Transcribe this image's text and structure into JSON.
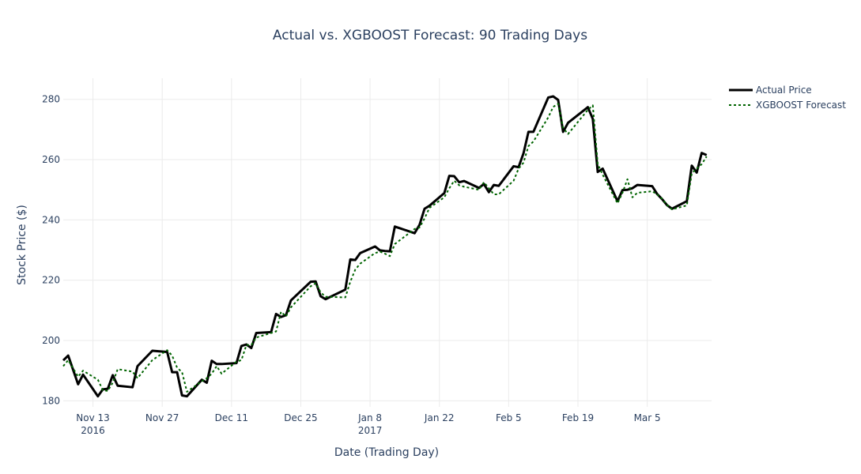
{
  "chart_data": {
    "type": "line",
    "title": "Actual vs. XGBOOST Forecast: 90 Trading Days",
    "xlabel": "Date (Trading Day)",
    "ylabel": "Stock Price ($)",
    "x_axis_type": "date",
    "xlim": [
      "2016-11-07",
      "2017-03-18"
    ],
    "ylim": [
      178,
      287
    ],
    "y_ticks": [
      180,
      200,
      220,
      240,
      260,
      280
    ],
    "x_ticks": [
      {
        "date": "2016-11-13",
        "label": "Nov 13",
        "sublabel": "2016"
      },
      {
        "date": "2016-11-27",
        "label": "Nov 27",
        "sublabel": ""
      },
      {
        "date": "2016-12-11",
        "label": "Dec 11",
        "sublabel": ""
      },
      {
        "date": "2016-12-25",
        "label": "Dec 25",
        "sublabel": ""
      },
      {
        "date": "2017-01-08",
        "label": "Jan 8",
        "sublabel": "2017"
      },
      {
        "date": "2017-01-22",
        "label": "Jan 22",
        "sublabel": ""
      },
      {
        "date": "2017-02-05",
        "label": "Feb 5",
        "sublabel": ""
      },
      {
        "date": "2017-02-19",
        "label": "Feb 19",
        "sublabel": ""
      },
      {
        "date": "2017-03-05",
        "label": "Mar 5",
        "sublabel": ""
      }
    ],
    "grid": true,
    "legend_position": "top-right",
    "series": [
      {
        "name": "Actual Price",
        "color": "#000000",
        "dash": "solid",
        "points": [
          [
            "2016-11-07",
            193.4
          ],
          [
            "2016-11-08",
            195.0
          ],
          [
            "2016-11-10",
            185.5
          ],
          [
            "2016-11-11",
            188.7
          ],
          [
            "2016-11-14",
            181.5
          ],
          [
            "2016-11-15",
            183.8
          ],
          [
            "2016-11-16",
            184.0
          ],
          [
            "2016-11-17",
            188.5
          ],
          [
            "2016-11-18",
            185.0
          ],
          [
            "2016-11-21",
            184.5
          ],
          [
            "2016-11-22",
            191.5
          ],
          [
            "2016-11-25",
            196.6
          ],
          [
            "2016-11-28",
            196.2
          ],
          [
            "2016-11-29",
            189.5
          ],
          [
            "2016-11-30",
            189.5
          ],
          [
            "2016-12-01",
            181.8
          ],
          [
            "2016-12-02",
            181.5
          ],
          [
            "2016-12-05",
            187.0
          ],
          [
            "2016-12-06",
            186.0
          ],
          [
            "2016-12-07",
            193.3
          ],
          [
            "2016-12-08",
            192.2
          ],
          [
            "2016-12-09",
            192.2
          ],
          [
            "2016-12-12",
            192.5
          ],
          [
            "2016-12-13",
            198.2
          ],
          [
            "2016-12-14",
            198.7
          ],
          [
            "2016-12-15",
            197.5
          ],
          [
            "2016-12-16",
            202.5
          ],
          [
            "2016-12-19",
            202.8
          ],
          [
            "2016-12-20",
            208.8
          ],
          [
            "2016-12-21",
            207.8
          ],
          [
            "2016-12-22",
            208.4
          ],
          [
            "2016-12-23",
            213.3
          ],
          [
            "2016-12-27",
            219.5
          ],
          [
            "2016-12-28",
            219.6
          ],
          [
            "2016-12-29",
            214.7
          ],
          [
            "2016-12-30",
            213.7
          ],
          [
            "2017-01-03",
            216.9
          ],
          [
            "2017-01-04",
            226.9
          ],
          [
            "2017-01-05",
            226.7
          ],
          [
            "2017-01-06",
            229.0
          ],
          [
            "2017-01-09",
            231.2
          ],
          [
            "2017-01-10",
            229.9
          ],
          [
            "2017-01-11",
            229.7
          ],
          [
            "2017-01-12",
            229.6
          ],
          [
            "2017-01-13",
            237.8
          ],
          [
            "2017-01-17",
            235.6
          ],
          [
            "2017-01-18",
            238.4
          ],
          [
            "2017-01-19",
            243.7
          ],
          [
            "2017-01-20",
            244.7
          ],
          [
            "2017-01-23",
            248.9
          ],
          [
            "2017-01-24",
            254.6
          ],
          [
            "2017-01-25",
            254.5
          ],
          [
            "2017-01-26",
            252.5
          ],
          [
            "2017-01-27",
            252.9
          ],
          [
            "2017-01-30",
            250.6
          ],
          [
            "2017-01-31",
            251.9
          ],
          [
            "2017-02-01",
            249.2
          ],
          [
            "2017-02-02",
            251.6
          ],
          [
            "2017-02-03",
            251.3
          ],
          [
            "2017-02-06",
            257.8
          ],
          [
            "2017-02-07",
            257.5
          ],
          [
            "2017-02-08",
            262.1
          ],
          [
            "2017-02-09",
            269.2
          ],
          [
            "2017-02-10",
            269.2
          ],
          [
            "2017-02-13",
            280.6
          ],
          [
            "2017-02-14",
            280.98
          ],
          [
            "2017-02-15",
            279.8
          ],
          [
            "2017-02-16",
            269.2
          ],
          [
            "2017-02-17",
            272.2
          ],
          [
            "2017-02-21",
            277.4
          ],
          [
            "2017-02-22",
            273.5
          ],
          [
            "2017-02-23",
            255.9
          ],
          [
            "2017-02-24",
            257.0
          ],
          [
            "2017-02-27",
            246.2
          ],
          [
            "2017-02-28",
            249.9
          ],
          [
            "2017-03-01",
            250.0
          ],
          [
            "2017-03-02",
            250.5
          ],
          [
            "2017-03-03",
            251.6
          ],
          [
            "2017-03-06",
            251.2
          ],
          [
            "2017-03-07",
            248.6
          ],
          [
            "2017-03-08",
            246.9
          ],
          [
            "2017-03-09",
            244.9
          ],
          [
            "2017-03-10",
            243.7
          ],
          [
            "2017-03-13",
            246.2
          ],
          [
            "2017-03-14",
            258.0
          ],
          [
            "2017-03-15",
            255.7
          ],
          [
            "2017-03-16",
            262.2
          ],
          [
            "2017-03-17",
            261.5
          ]
        ]
      },
      {
        "name": "XGBOOST Forecast",
        "color": "#006400",
        "dash": "dot",
        "points": [
          [
            "2016-11-07",
            191.5
          ],
          [
            "2016-11-08",
            193.5
          ],
          [
            "2016-11-10",
            188.0
          ],
          [
            "2016-11-11",
            190.0
          ],
          [
            "2016-11-14",
            187.0
          ],
          [
            "2016-11-15",
            183.5
          ],
          [
            "2016-11-16",
            183.3
          ],
          [
            "2016-11-17",
            186.0
          ],
          [
            "2016-11-18",
            190.5
          ],
          [
            "2016-11-21",
            189.7
          ],
          [
            "2016-11-22",
            187.5
          ],
          [
            "2016-11-25",
            193.5
          ],
          [
            "2016-11-28",
            196.8
          ],
          [
            "2016-11-29",
            195.0
          ],
          [
            "2016-11-30",
            191.0
          ],
          [
            "2016-12-01",
            189.5
          ],
          [
            "2016-12-02",
            183.0
          ],
          [
            "2016-12-05",
            186.5
          ],
          [
            "2016-12-06",
            187.5
          ],
          [
            "2016-12-07",
            189.0
          ],
          [
            "2016-12-08",
            191.5
          ],
          [
            "2016-12-09",
            189.0
          ],
          [
            "2016-12-12",
            193.0
          ],
          [
            "2016-12-13",
            193.5
          ],
          [
            "2016-12-14",
            198.5
          ],
          [
            "2016-12-15",
            198.5
          ],
          [
            "2016-12-16",
            201.0
          ],
          [
            "2016-12-19",
            202.5
          ],
          [
            "2016-12-20",
            203.0
          ],
          [
            "2016-12-21",
            209.5
          ],
          [
            "2016-12-22",
            208.0
          ],
          [
            "2016-12-23",
            211.0
          ],
          [
            "2016-12-27",
            218.0
          ],
          [
            "2016-12-28",
            219.0
          ],
          [
            "2016-12-29",
            216.0
          ],
          [
            "2016-12-30",
            214.5
          ],
          [
            "2017-01-03",
            214.3
          ],
          [
            "2017-01-04",
            219.5
          ],
          [
            "2017-01-05",
            223.5
          ],
          [
            "2017-01-06",
            225.5
          ],
          [
            "2017-01-09",
            229.0
          ],
          [
            "2017-01-10",
            229.5
          ],
          [
            "2017-01-11",
            228.8
          ],
          [
            "2017-01-12",
            228.0
          ],
          [
            "2017-01-13",
            232.0
          ],
          [
            "2017-01-17",
            237.0
          ],
          [
            "2017-01-18",
            237.5
          ],
          [
            "2017-01-19",
            240.5
          ],
          [
            "2017-01-20",
            244.0
          ],
          [
            "2017-01-23",
            247.5
          ],
          [
            "2017-01-24",
            250.5
          ],
          [
            "2017-01-25",
            253.0
          ],
          [
            "2017-01-26",
            251.5
          ],
          [
            "2017-01-27",
            251.0
          ],
          [
            "2017-01-30",
            250.0
          ],
          [
            "2017-01-31",
            252.5
          ],
          [
            "2017-02-01",
            250.5
          ],
          [
            "2017-02-02",
            248.5
          ],
          [
            "2017-02-03",
            248.5
          ],
          [
            "2017-02-06",
            253.0
          ],
          [
            "2017-02-07",
            257.0
          ],
          [
            "2017-02-08",
            259.0
          ],
          [
            "2017-02-09",
            264.5
          ],
          [
            "2017-02-10",
            266.0
          ],
          [
            "2017-02-13",
            274.0
          ],
          [
            "2017-02-14",
            277.5
          ],
          [
            "2017-02-15",
            278.5
          ],
          [
            "2017-02-16",
            270.5
          ],
          [
            "2017-02-17",
            268.5
          ],
          [
            "2017-02-21",
            276.5
          ],
          [
            "2017-02-22",
            278.0
          ],
          [
            "2017-02-23",
            258.5
          ],
          [
            "2017-02-24",
            255.0
          ],
          [
            "2017-02-27",
            245.5
          ],
          [
            "2017-02-28",
            249.0
          ],
          [
            "2017-03-01",
            253.5
          ],
          [
            "2017-03-02",
            247.5
          ],
          [
            "2017-03-03",
            249.0
          ],
          [
            "2017-03-06",
            249.5
          ],
          [
            "2017-03-07",
            248.5
          ],
          [
            "2017-03-08",
            247.0
          ],
          [
            "2017-03-09",
            245.0
          ],
          [
            "2017-03-10",
            243.5
          ],
          [
            "2017-03-13",
            244.8
          ],
          [
            "2017-03-14",
            255.5
          ],
          [
            "2017-03-15",
            257.0
          ],
          [
            "2017-03-16",
            258.5
          ],
          [
            "2017-03-17",
            261.0
          ]
        ]
      }
    ]
  }
}
